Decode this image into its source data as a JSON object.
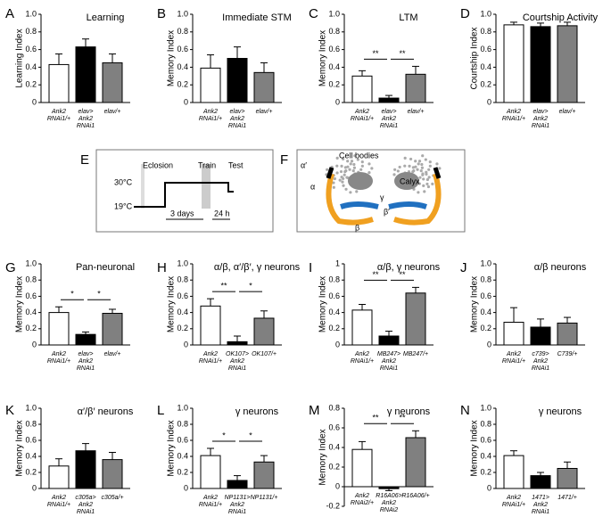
{
  "chart_data": [
    {
      "type": "bar",
      "panel": "A",
      "title": "Learning",
      "ylabel": "Learning Index",
      "ylim": [
        0,
        1
      ],
      "yticks": [
        0,
        0.2,
        0.4,
        0.6,
        0.8,
        {
          "value": 1,
          "label": "1.0"
        }
      ],
      "categories": [
        [
          "Ank2",
          "RNAi1/+"
        ],
        [
          "elav>",
          "Ank2",
          "RNAi1"
        ],
        [
          "elav/+"
        ]
      ],
      "values": [
        0.43,
        0.63,
        0.45
      ],
      "errors": [
        0.12,
        0.09,
        0.1
      ],
      "colors": [
        "#ffffff",
        "#000000",
        "#808080"
      ],
      "annotations": []
    },
    {
      "type": "bar",
      "panel": "B",
      "title": "Immediate STM",
      "ylabel": "Memory Index",
      "ylim": [
        0,
        1
      ],
      "yticks": [
        0,
        0.2,
        0.4,
        0.6,
        0.8,
        {
          "value": 1,
          "label": "1.0"
        }
      ],
      "categories": [
        [
          "Ank2",
          "RNAi1/+"
        ],
        [
          "elav>",
          "Ank2",
          "RNAi1"
        ],
        [
          "elav/+"
        ]
      ],
      "values": [
        0.39,
        0.5,
        0.34
      ],
      "errors": [
        0.15,
        0.13,
        0.11
      ],
      "colors": [
        "#ffffff",
        "#000000",
        "#808080"
      ],
      "annotations": []
    },
    {
      "type": "bar",
      "panel": "C",
      "title": "LTM",
      "ylabel": "Memory Index",
      "ylim": [
        0,
        1
      ],
      "yticks": [
        0,
        0.2,
        0.4,
        0.6,
        0.8,
        {
          "value": 1,
          "label": "1.0"
        }
      ],
      "categories": [
        [
          "Ank2",
          "RNAi1/+"
        ],
        [
          "elav>",
          "Ank2",
          "RNAi1"
        ],
        [
          "elav/+"
        ]
      ],
      "values": [
        0.3,
        0.05,
        0.32
      ],
      "errors": [
        0.06,
        0.03,
        0.09
      ],
      "colors": [
        "#ffffff",
        "#000000",
        "#808080"
      ],
      "annotations": [
        "**",
        "**"
      ]
    },
    {
      "type": "bar",
      "panel": "D",
      "title": "Courtship Activity",
      "ylabel": "Courtship Index",
      "ylim": [
        0,
        1
      ],
      "yticks": [
        0,
        0.2,
        0.4,
        0.6,
        0.8,
        {
          "value": 1,
          "label": "1.0"
        }
      ],
      "categories": [
        [
          "Ank2",
          "RNAi1/+"
        ],
        [
          "elav>",
          "Ank2",
          "RNAi1"
        ],
        [
          "elav/+"
        ]
      ],
      "values": [
        0.88,
        0.86,
        0.87
      ],
      "errors": [
        0.03,
        0.04,
        0.04
      ],
      "colors": [
        "#ffffff",
        "#000000",
        "#808080"
      ],
      "annotations": []
    },
    {
      "type": "bar",
      "panel": "G",
      "title": "Pan-neuronal",
      "ylabel": "Memory Index",
      "ylim": [
        0,
        1
      ],
      "yticks": [
        0,
        0.2,
        0.4,
        0.6,
        0.8,
        {
          "value": 1,
          "label": "1.0"
        }
      ],
      "categories": [
        [
          "Ank2",
          "RNAi1/+"
        ],
        [
          "elav>",
          "Ank2",
          "RNAi1"
        ],
        [
          "elav/+"
        ]
      ],
      "values": [
        0.4,
        0.13,
        0.39
      ],
      "errors": [
        0.07,
        0.03,
        0.05
      ],
      "colors": [
        "#ffffff",
        "#000000",
        "#808080"
      ],
      "annotations": [
        "*",
        "*"
      ]
    },
    {
      "type": "bar",
      "panel": "H",
      "title": "α/β, α′/β′, γ neurons",
      "ylabel": "Memory Index",
      "ylim": [
        0,
        1
      ],
      "yticks": [
        0,
        0.2,
        0.4,
        0.6,
        0.8,
        {
          "value": 1,
          "label": "1.0"
        }
      ],
      "categories": [
        [
          "Ank2",
          "RNAi1/+"
        ],
        [
          "OK107>",
          "Ank2",
          "RNAi1"
        ],
        [
          "OK107/+"
        ]
      ],
      "values": [
        0.48,
        0.04,
        0.33
      ],
      "errors": [
        0.09,
        0.07,
        0.09
      ],
      "colors": [
        "#ffffff",
        "#000000",
        "#808080"
      ],
      "annotations": [
        "**",
        "*"
      ]
    },
    {
      "type": "bar",
      "panel": "I",
      "title": "α/β, γ neurons",
      "ylabel": "Memory Index",
      "ylim": [
        0,
        1
      ],
      "yticks": [
        0,
        0.2,
        0.4,
        0.6,
        0.8,
        1
      ],
      "categories": [
        [
          "Ank2",
          "RNAi1/+"
        ],
        [
          "MB247>",
          "Ank2",
          "RNAi1"
        ],
        [
          "MB247/+"
        ]
      ],
      "values": [
        0.43,
        0.11,
        0.64
      ],
      "errors": [
        0.07,
        0.06,
        0.07
      ],
      "colors": [
        "#ffffff",
        "#000000",
        "#808080"
      ],
      "annotations": [
        "**",
        "**"
      ]
    },
    {
      "type": "bar",
      "panel": "J",
      "title": "α/β neurons",
      "ylabel": "Memory Index",
      "ylim": [
        0,
        1
      ],
      "yticks": [
        0,
        0.2,
        0.4,
        0.6,
        0.8,
        {
          "value": 1,
          "label": "1.0"
        }
      ],
      "categories": [
        [
          "Ank2",
          "RNAi1/+"
        ],
        [
          "c739>",
          "Ank2",
          "RNAi1"
        ],
        [
          "C739/+"
        ]
      ],
      "values": [
        0.28,
        0.22,
        0.27
      ],
      "errors": [
        0.18,
        0.1,
        0.07
      ],
      "colors": [
        "#ffffff",
        "#000000",
        "#808080"
      ],
      "annotations": []
    },
    {
      "type": "bar",
      "panel": "K",
      "title": "α′/β′ neurons",
      "ylabel": "Memory Index",
      "ylim": [
        0,
        1
      ],
      "yticks": [
        0,
        0.2,
        0.4,
        0.6,
        0.8,
        {
          "value": 1,
          "label": "1.0"
        }
      ],
      "categories": [
        [
          "Ank2",
          "RNAi1/+"
        ],
        [
          "c305a>",
          "Ank2",
          "RNAi1"
        ],
        [
          "c305a/+"
        ]
      ],
      "values": [
        0.28,
        0.47,
        0.36
      ],
      "errors": [
        0.09,
        0.09,
        0.09
      ],
      "colors": [
        "#ffffff",
        "#000000",
        "#808080"
      ],
      "annotations": []
    },
    {
      "type": "bar",
      "panel": "L",
      "title": "γ neurons",
      "ylabel": "Memory Index",
      "ylim": [
        0,
        1
      ],
      "yticks": [
        0,
        0.2,
        0.4,
        0.6,
        0.8,
        {
          "value": 1,
          "label": "1.0"
        }
      ],
      "categories": [
        [
          "Ank2",
          "RNAi1/+"
        ],
        [
          "NP1131>",
          "Ank2",
          "RNAi1"
        ],
        [
          "NP1131/+"
        ]
      ],
      "values": [
        0.41,
        0.1,
        0.33
      ],
      "errors": [
        0.09,
        0.06,
        0.08
      ],
      "colors": [
        "#ffffff",
        "#000000",
        "#808080"
      ],
      "annotations": [
        "*",
        "*"
      ]
    },
    {
      "type": "bar",
      "panel": "M",
      "title": "γ neurons",
      "ylabel": "Memory Index",
      "ylim": [
        -0.2,
        0.8
      ],
      "yticks": [
        -0.2,
        0,
        0.2,
        0.4,
        0.6,
        0.8
      ],
      "categories": [
        [
          "Ank2",
          "RNAi2/+"
        ],
        [
          "R16A06>",
          "Ank2",
          "RNAi2"
        ],
        [
          "R16A06/+"
        ]
      ],
      "values": [
        0.38,
        -0.02,
        0.5
      ],
      "errors": [
        0.08,
        0.02,
        0.07
      ],
      "colors": [
        "#ffffff",
        "#000000",
        "#808080"
      ],
      "annotations": [
        "**",
        "**"
      ]
    },
    {
      "type": "bar",
      "panel": "N",
      "title": "γ neurons",
      "ylabel": "Memory Index",
      "ylim": [
        0,
        1
      ],
      "yticks": [
        0,
        0.2,
        0.4,
        0.6,
        0.8,
        {
          "value": 1,
          "label": "1.0"
        }
      ],
      "categories": [
        [
          "Ank2",
          "RNAi1/+"
        ],
        [
          "1471>",
          "Ank2",
          "RNAi1"
        ],
        [
          "1471/+"
        ]
      ],
      "values": [
        0.41,
        0.16,
        0.25
      ],
      "errors": [
        0.06,
        0.04,
        0.08
      ],
      "colors": [
        "#ffffff",
        "#000000",
        "#808080"
      ],
      "annotations": []
    }
  ],
  "diagram_e": {
    "panel": "E",
    "eclosion": "Eclosion",
    "train": "Train",
    "test": "Test",
    "high": "30°C",
    "low": "19°C",
    "days": "3 days",
    "hours": "24 h"
  },
  "diagram_f": {
    "panel": "F",
    "cell_bodies": "Cell bodies",
    "calyx": "Calyx",
    "alpha_prime": "α′",
    "alpha": "α",
    "gamma": "γ",
    "beta_prime": "β′",
    "beta": "β"
  }
}
